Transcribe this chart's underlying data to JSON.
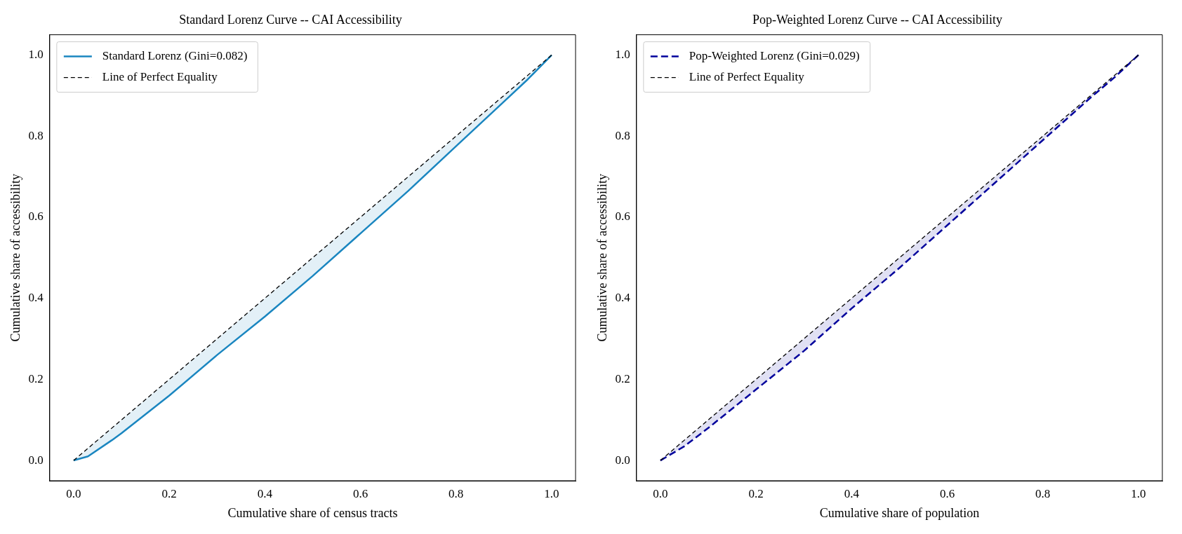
{
  "chart_data": [
    {
      "type": "line",
      "title": "Standard Lorenz Curve -- CAI Accessibility",
      "xlabel": "Cumulative share of census tracts",
      "ylabel": "Cumulative share of accessibility",
      "xlim": [
        -0.05,
        1.05
      ],
      "ylim": [
        -0.05,
        1.05
      ],
      "xticks": [
        {
          "value": 0,
          "label": "0.0"
        },
        {
          "value": 0.2,
          "label": "0.2"
        },
        {
          "value": 0.4,
          "label": "0.4"
        },
        {
          "value": 0.6,
          "label": "0.6"
        },
        {
          "value": 0.8,
          "label": "0.8"
        },
        {
          "value": 1,
          "label": "1.0"
        }
      ],
      "yticks": [
        {
          "value": 0,
          "label": "0.0"
        },
        {
          "value": 0.2,
          "label": "0.2"
        },
        {
          "value": 0.4,
          "label": "0.4"
        },
        {
          "value": 0.6,
          "label": "0.6"
        },
        {
          "value": 0.8,
          "label": "0.8"
        },
        {
          "value": 1,
          "label": "1.0"
        }
      ],
      "grid": false,
      "legend": "top left",
      "marker": "none",
      "series": [
        {
          "name": "Standard Lorenz (Gini=0.082)",
          "color": "#1a86c0",
          "line_style": "solid",
          "x": [
            0,
            0.03,
            0.08,
            0.1,
            0.2,
            0.3,
            0.4,
            0.5,
            0.6,
            0.7,
            0.8,
            0.9,
            0.95,
            1
          ],
          "values": [
            0,
            0.01,
            0.05,
            0.067,
            0.16,
            0.26,
            0.355,
            0.455,
            0.56,
            0.665,
            0.775,
            0.885,
            0.94,
            1
          ],
          "lower": [
            0,
            0.01,
            0.05,
            0.067,
            0.16,
            0.26,
            0.355,
            0.455,
            0.56,
            0.665,
            0.775,
            0.885,
            0.94,
            1
          ],
          "upper": [
            0,
            0.03,
            0.08,
            0.1,
            0.2,
            0.3,
            0.4,
            0.5,
            0.6,
            0.7,
            0.8,
            0.9,
            0.95,
            1
          ]
        },
        {
          "name": "Line of Perfect Equality",
          "color": "#000000",
          "line_style": "dashed",
          "x": [
            0,
            1
          ],
          "values": [
            0,
            1
          ]
        }
      ]
    },
    {
      "type": "line",
      "title": "Pop-Weighted Lorenz Curve -- CAI Accessibility",
      "xlabel": "Cumulative share of population",
      "ylabel": "Cumulative share of accessibility",
      "xlim": [
        -0.05,
        1.05
      ],
      "ylim": [
        -0.05,
        1.05
      ],
      "xticks": [
        {
          "value": 0,
          "label": "0.0"
        },
        {
          "value": 0.2,
          "label": "0.2"
        },
        {
          "value": 0.4,
          "label": "0.4"
        },
        {
          "value": 0.6,
          "label": "0.6"
        },
        {
          "value": 0.8,
          "label": "0.8"
        },
        {
          "value": 1,
          "label": "1.0"
        }
      ],
      "yticks": [
        {
          "value": 0,
          "label": "0.0"
        },
        {
          "value": 0.2,
          "label": "0.2"
        },
        {
          "value": 0.4,
          "label": "0.4"
        },
        {
          "value": 0.6,
          "label": "0.6"
        },
        {
          "value": 0.8,
          "label": "0.8"
        },
        {
          "value": 1,
          "label": "1.0"
        }
      ],
      "grid": false,
      "legend": "top left",
      "marker": "none",
      "series": [
        {
          "name": "Pop-Weighted Lorenz (Gini=0.029)",
          "color": "#00009c",
          "line_style": "dashed",
          "x": [
            0,
            0.05,
            0.1,
            0.2,
            0.3,
            0.4,
            0.5,
            0.6,
            0.7,
            0.8,
            0.9,
            0.95,
            1
          ],
          "values": [
            0,
            0.035,
            0.08,
            0.175,
            0.27,
            0.375,
            0.475,
            0.58,
            0.685,
            0.79,
            0.895,
            0.945,
            1
          ],
          "lower": [
            0,
            0.035,
            0.08,
            0.175,
            0.27,
            0.375,
            0.475,
            0.58,
            0.685,
            0.79,
            0.895,
            0.945,
            1
          ],
          "upper": [
            0,
            0.05,
            0.1,
            0.2,
            0.3,
            0.4,
            0.5,
            0.6,
            0.7,
            0.8,
            0.9,
            0.95,
            1
          ]
        },
        {
          "name": "Line of Perfect Equality",
          "color": "#000000",
          "line_style": "dashed",
          "x": [
            0,
            1
          ],
          "values": [
            0,
            1
          ]
        }
      ]
    }
  ]
}
